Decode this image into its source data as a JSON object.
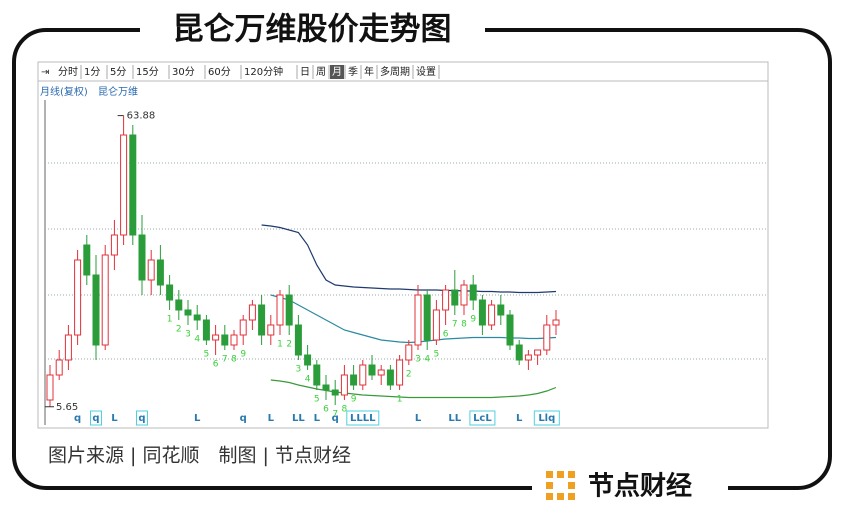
{
  "chart_data": {
    "type": "candlestick",
    "title": "昆仑万维股价走势图",
    "toolbar": [
      "分时",
      "1分",
      "5分",
      "15分",
      "30分",
      "60分",
      "120分钟",
      "日",
      "周",
      "月",
      "季",
      "年",
      "多周期",
      "设置"
    ],
    "active_tab": 9,
    "period_label": "月线(复权)",
    "stock_name": "昆仑万维",
    "footer": "图片来源 | 同花顺　制图 | 节点财经",
    "brand": "节点财经",
    "up_color": "#e0303a",
    "down_color": "#2a9d3a",
    "ylim": [
      4,
      67
    ],
    "open": [
      7,
      12,
      15,
      20,
      38,
      32,
      18,
      36,
      40,
      60,
      40,
      31,
      35,
      30,
      27,
      25,
      24,
      23,
      19,
      20,
      18,
      20,
      23,
      26,
      20,
      22,
      28,
      22,
      16,
      14,
      10,
      9,
      8,
      12,
      10,
      14,
      12,
      13,
      10,
      15,
      18,
      28,
      19,
      25,
      29,
      26,
      30,
      27,
      22,
      26,
      24,
      18,
      15,
      16,
      17,
      22
    ],
    "high": [
      14,
      17,
      22,
      37,
      40,
      36,
      38,
      43,
      63.88,
      62,
      44,
      37,
      38,
      32,
      29,
      27,
      26,
      24,
      22,
      22,
      21,
      24,
      27,
      28,
      24,
      29,
      30,
      24,
      18,
      15,
      12,
      11,
      14,
      14,
      15,
      16,
      14,
      14,
      16,
      19,
      30,
      29,
      27,
      30,
      33,
      31,
      32,
      28,
      27,
      28,
      25,
      19,
      17,
      17,
      24,
      25
    ],
    "low": [
      5.65,
      11,
      13,
      18,
      30,
      15,
      17,
      33,
      38,
      38,
      28,
      28,
      28,
      25,
      23,
      22,
      21,
      18,
      16,
      17,
      17,
      18,
      21,
      18,
      18,
      20,
      20,
      15,
      13,
      9,
      7,
      6,
      7,
      9,
      9,
      11,
      10,
      9,
      9,
      14,
      17,
      17,
      18,
      22,
      24,
      24,
      25,
      20,
      21,
      22,
      17,
      14,
      13,
      14,
      16,
      20
    ],
    "close": [
      12,
      15,
      20,
      35,
      32,
      18,
      36,
      40,
      60,
      40,
      31,
      35,
      30,
      27,
      25,
      24,
      23,
      19,
      20,
      18,
      20,
      23,
      26,
      20,
      22,
      28,
      22,
      16,
      14,
      10,
      9,
      8,
      12,
      10,
      14,
      12,
      13,
      10,
      15,
      18,
      28,
      19,
      25,
      29,
      26,
      30,
      27,
      22,
      26,
      24,
      18,
      15,
      16,
      17,
      22,
      23
    ],
    "series": [
      {
        "color": "#1f3a6e",
        "values": [
          null,
          null,
          null,
          null,
          null,
          null,
          null,
          null,
          null,
          null,
          null,
          null,
          null,
          null,
          null,
          null,
          null,
          null,
          null,
          null,
          null,
          null,
          null,
          42,
          41.8,
          41.5,
          41,
          40.5,
          38,
          34,
          31,
          30,
          29.8,
          29.6,
          29.5,
          29.4,
          29.3,
          29.2,
          29.2,
          29.1,
          29,
          29,
          29,
          28.9,
          28.9,
          28.8,
          28.8,
          28.7,
          28.7,
          28.6,
          28.6,
          28.5,
          28.5,
          28.5,
          28.6,
          28.7
        ]
      },
      {
        "color": "#2a8aa0",
        "values": [
          null,
          null,
          null,
          null,
          null,
          null,
          null,
          null,
          null,
          null,
          null,
          null,
          null,
          null,
          null,
          null,
          null,
          null,
          null,
          null,
          null,
          null,
          null,
          null,
          28,
          27.5,
          27,
          26,
          25,
          24,
          23,
          22,
          21,
          20.5,
          20,
          19.5,
          19,
          18.8,
          18.6,
          18.5,
          18.6,
          18.8,
          19,
          19.2,
          19.3,
          19.4,
          19.5,
          19.5,
          19.5,
          19.5,
          19.4,
          19.4,
          19.3,
          19.3,
          19.4,
          19.5
        ]
      },
      {
        "color": "#3a9a3a",
        "values": [
          null,
          null,
          null,
          null,
          null,
          null,
          null,
          null,
          null,
          null,
          null,
          null,
          null,
          null,
          null,
          null,
          null,
          null,
          null,
          null,
          null,
          null,
          null,
          null,
          11,
          10.8,
          10.5,
          10,
          9.6,
          9.2,
          8.9,
          8.6,
          8.4,
          8.2,
          8,
          7.9,
          7.8,
          7.7,
          7.6,
          7.5,
          7.5,
          7.5,
          7.5,
          7.5,
          7.5,
          7.5,
          7.5,
          7.5,
          7.5,
          7.6,
          7.7,
          7.8,
          8,
          8.3,
          8.8,
          9.5
        ]
      }
    ],
    "counts": [
      {
        "index": 13,
        "count": 1
      },
      {
        "index": 14,
        "count": 2
      },
      {
        "index": 15,
        "count": 3
      },
      {
        "index": 16,
        "count": 4
      },
      {
        "index": 17,
        "count": 5
      },
      {
        "index": 18,
        "count": 6
      },
      {
        "index": 19,
        "count": 7
      },
      {
        "index": 20,
        "count": 8
      },
      {
        "index": 21,
        "count": 9
      },
      {
        "index": 25,
        "count": 1
      },
      {
        "index": 26,
        "count": 2
      },
      {
        "index": 27,
        "count": 3
      },
      {
        "index": 28,
        "count": 4
      },
      {
        "index": 29,
        "count": 5
      },
      {
        "index": 30,
        "count": 6
      },
      {
        "index": 31,
        "count": 7
      },
      {
        "index": 32,
        "count": 8
      },
      {
        "index": 33,
        "count": 9
      },
      {
        "index": 38,
        "count": 1
      },
      {
        "index": 39,
        "count": 2
      },
      {
        "index": 40,
        "count": 3
      },
      {
        "index": 41,
        "count": 4
      },
      {
        "index": 42,
        "count": 5
      },
      {
        "index": 43,
        "count": 6
      },
      {
        "index": 44,
        "count": 7
      },
      {
        "index": 45,
        "count": 8
      },
      {
        "index": 46,
        "count": 9
      }
    ],
    "markers": [
      {
        "index": 3,
        "text": "q",
        "highlight": false
      },
      {
        "index": 5,
        "text": "q",
        "highlight": true
      },
      {
        "index": 7,
        "text": "L",
        "highlight": false
      },
      {
        "index": 10,
        "text": "q",
        "highlight": true
      },
      {
        "index": 16,
        "text": "L",
        "highlight": false
      },
      {
        "index": 21,
        "text": "q",
        "highlight": false
      },
      {
        "index": 24,
        "text": "L",
        "highlight": false
      },
      {
        "index": 27,
        "text": "LL",
        "highlight": false
      },
      {
        "index": 29,
        "text": "L",
        "highlight": false
      },
      {
        "index": 31,
        "text": "q",
        "highlight": false
      },
      {
        "index": 34,
        "text": "LLLL",
        "highlight": true
      },
      {
        "index": 40,
        "text": "L",
        "highlight": false
      },
      {
        "index": 44,
        "text": "LL",
        "highlight": false
      },
      {
        "index": 47,
        "text": "LcL",
        "highlight": true
      },
      {
        "index": 51,
        "text": "L",
        "highlight": false
      },
      {
        "index": 54,
        "text": "Llq",
        "highlight": true
      }
    ]
  }
}
